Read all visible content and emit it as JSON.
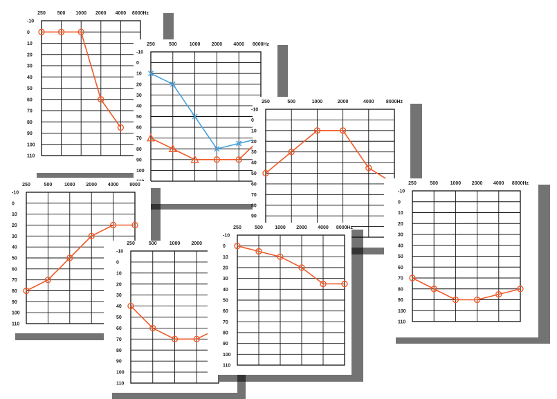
{
  "colors": {
    "right_ear": "#f05a28",
    "left_ear": "#4aa3df",
    "grid": "#111111",
    "background": "#ffffff",
    "shadow": "#000000"
  },
  "chart_data": [
    {
      "type": "line",
      "title": "",
      "xlabel": "",
      "ylabel": "",
      "x_categories": [
        "250",
        "500",
        "1000",
        "2000",
        "4000",
        "8000Hz"
      ],
      "y_ticks": [
        "-10",
        "0",
        "10",
        "20",
        "30",
        "40",
        "50",
        "60",
        "70",
        "80",
        "90",
        "100",
        "110"
      ],
      "ylim": [
        -10,
        110
      ],
      "y_inverted": true,
      "grid": true,
      "series": [
        {
          "marker": "circle",
          "color": "#f05a28",
          "values": [
            0,
            0,
            0,
            60,
            85,
            null
          ]
        }
      ]
    },
    {
      "type": "line",
      "title": "",
      "xlabel": "",
      "ylabel": "",
      "x_categories": [
        "250",
        "500",
        "1000",
        "2000",
        "4000",
        "8000Hz"
      ],
      "y_ticks": [
        "-10",
        "0",
        "10",
        "20",
        "30",
        "40",
        "50",
        "60",
        "70",
        "80",
        "90",
        "100",
        "110"
      ],
      "ylim": [
        -10,
        110
      ],
      "y_inverted": true,
      "grid": true,
      "series": [
        {
          "marker": "cross",
          "color": "#4aa3df",
          "values": [
            10,
            20,
            50,
            80,
            75,
            70
          ]
        },
        {
          "marker": "triangle-circle",
          "color": "#f05a28",
          "values": [
            70,
            80,
            90,
            90,
            90,
            70
          ]
        }
      ]
    },
    {
      "type": "line",
      "title": "",
      "xlabel": "",
      "ylabel": "",
      "x_categories": [
        "250",
        "500",
        "1000",
        "2000",
        "4000",
        "8000Hz"
      ],
      "y_ticks": [
        "-10",
        "0",
        "10",
        "20",
        "30",
        "40",
        "50",
        "60",
        "70",
        "80",
        "90",
        "100",
        "110"
      ],
      "ylim": [
        -10,
        110
      ],
      "y_inverted": true,
      "grid": true,
      "series": [
        {
          "marker": "circle",
          "color": "#f05a28",
          "values": [
            50,
            30,
            10,
            10,
            45,
            60
          ]
        }
      ]
    },
    {
      "type": "line",
      "title": "",
      "xlabel": "",
      "ylabel": "",
      "x_categories": [
        "250",
        "500",
        "1000",
        "2000",
        "4000",
        "8000"
      ],
      "y_ticks": [
        "-10",
        "0",
        "10",
        "20",
        "30",
        "40",
        "50",
        "60",
        "70",
        "80",
        "90",
        "100",
        "110"
      ],
      "ylim": [
        -10,
        110
      ],
      "y_inverted": true,
      "grid": true,
      "series": [
        {
          "marker": "circle",
          "color": "#f05a28",
          "values": [
            80,
            70,
            50,
            30,
            20,
            20
          ]
        }
      ]
    },
    {
      "type": "line",
      "title": "",
      "xlabel": "",
      "ylabel": "",
      "x_categories": [
        "250",
        "500",
        "1000",
        "2000",
        "4000"
      ],
      "y_ticks": [
        "-10",
        "0",
        "10",
        "20",
        "30",
        "40",
        "50",
        "60",
        "70",
        "80",
        "90",
        "100",
        "110"
      ],
      "ylim": [
        -10,
        110
      ],
      "y_inverted": true,
      "grid": true,
      "series": [
        {
          "marker": "circle",
          "color": "#f05a28",
          "values": [
            40,
            60,
            70,
            70,
            60
          ]
        }
      ]
    },
    {
      "type": "line",
      "title": "",
      "xlabel": "",
      "ylabel": "",
      "x_categories": [
        "250",
        "500",
        "1000",
        "2000",
        "4000",
        "8000Hz"
      ],
      "y_ticks": [
        "-10",
        "0",
        "10",
        "20",
        "30",
        "40",
        "50",
        "60",
        "70",
        "80",
        "90",
        "100",
        "110"
      ],
      "ylim": [
        -10,
        110
      ],
      "y_inverted": true,
      "grid": true,
      "series": [
        {
          "marker": "circle",
          "color": "#f05a28",
          "values": [
            0,
            5,
            10,
            20,
            35,
            35
          ]
        }
      ]
    },
    {
      "type": "line",
      "title": "",
      "xlabel": "",
      "ylabel": "",
      "x_categories": [
        "250",
        "500",
        "1000",
        "2000",
        "4000",
        "8000Hz"
      ],
      "y_ticks": [
        "-10",
        "0",
        "10",
        "20",
        "30",
        "40",
        "50",
        "60",
        "70",
        "80",
        "90",
        "100",
        "110"
      ],
      "ylim": [
        -10,
        110
      ],
      "y_inverted": true,
      "grid": true,
      "series": [
        {
          "marker": "circle",
          "color": "#f05a28",
          "values": [
            70,
            80,
            90,
            90,
            85,
            80
          ]
        }
      ]
    }
  ]
}
